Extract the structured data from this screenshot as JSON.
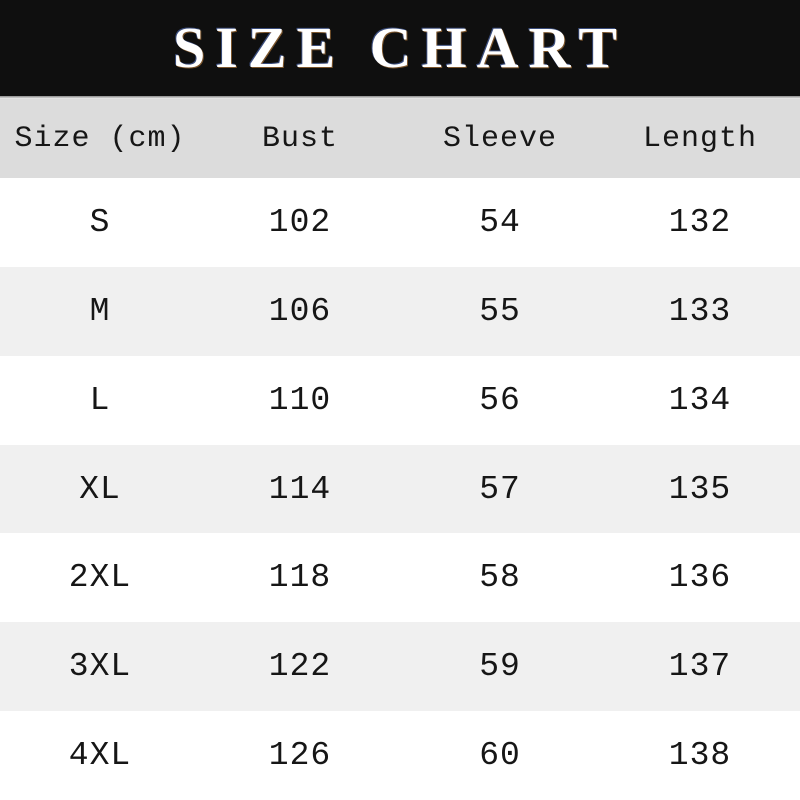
{
  "title": "SIZE CHART",
  "colors": {
    "banner_bg": "#0f0f0f",
    "banner_text": "#ffffff",
    "header_row_bg": "#dcdcdc",
    "alt_row_bg": "#f0f0f0",
    "row_bg": "#ffffff",
    "text": "#161616"
  },
  "chart_data": {
    "type": "table",
    "title": "SIZE CHART",
    "unit": "cm",
    "columns": [
      "Size (cm)",
      "Bust",
      "Sleeve",
      "Length"
    ],
    "rows": [
      {
        "size": "S",
        "bust": 102,
        "sleeve": 54,
        "length": 132
      },
      {
        "size": "M",
        "bust": 106,
        "sleeve": 55,
        "length": 133
      },
      {
        "size": "L",
        "bust": 110,
        "sleeve": 56,
        "length": 134
      },
      {
        "size": "XL",
        "bust": 114,
        "sleeve": 57,
        "length": 135
      },
      {
        "size": "2XL",
        "bust": 118,
        "sleeve": 58,
        "length": 136
      },
      {
        "size": "3XL",
        "bust": 122,
        "sleeve": 59,
        "length": 137
      },
      {
        "size": "4XL",
        "bust": 126,
        "sleeve": 60,
        "length": 138
      }
    ],
    "layout": {
      "grid": false,
      "alternating_row_shading": true,
      "columns_aligned": "center"
    }
  }
}
